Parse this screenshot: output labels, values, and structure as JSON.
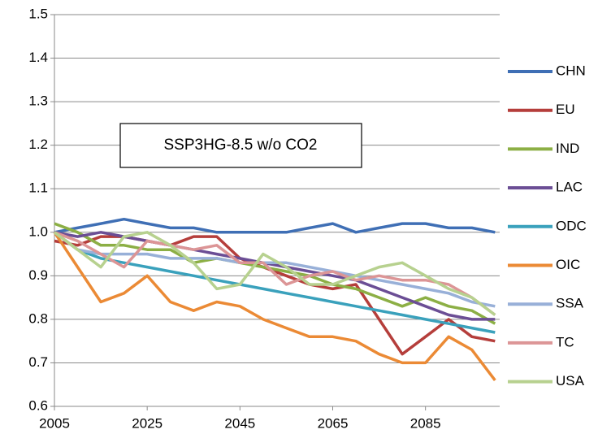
{
  "chart_data": {
    "type": "line",
    "annotation": "SSP3HG-8.5 w/o CO2",
    "x": [
      2005,
      2010,
      2015,
      2020,
      2025,
      2030,
      2035,
      2040,
      2045,
      2050,
      2055,
      2060,
      2065,
      2070,
      2075,
      2080,
      2085,
      2090,
      2095,
      2100
    ],
    "series": [
      {
        "name": "CHN",
        "color": "#3f6fb5",
        "values": [
          1.0,
          1.01,
          1.02,
          1.03,
          1.02,
          1.01,
          1.01,
          1.0,
          1.0,
          1.0,
          1.0,
          1.01,
          1.02,
          1.0,
          1.01,
          1.02,
          1.02,
          1.01,
          1.01,
          1.0
        ]
      },
      {
        "name": "EU",
        "color": "#b53e3b",
        "values": [
          0.98,
          0.97,
          0.99,
          0.99,
          0.98,
          0.97,
          0.99,
          0.99,
          0.94,
          0.92,
          0.9,
          0.88,
          0.87,
          0.88,
          0.8,
          0.72,
          0.76,
          0.8,
          0.76,
          0.75
        ]
      },
      {
        "name": "IND",
        "color": "#8caf45",
        "values": [
          1.02,
          1.0,
          0.97,
          0.97,
          0.96,
          0.96,
          0.93,
          0.94,
          0.93,
          0.92,
          0.91,
          0.9,
          0.88,
          0.87,
          0.85,
          0.83,
          0.85,
          0.83,
          0.82,
          0.79
        ]
      },
      {
        "name": "LAC",
        "color": "#6b4e95",
        "values": [
          1.0,
          0.99,
          1.0,
          0.99,
          0.98,
          0.97,
          0.96,
          0.95,
          0.94,
          0.93,
          0.92,
          0.91,
          0.9,
          0.89,
          0.87,
          0.85,
          0.83,
          0.81,
          0.8,
          0.8
        ]
      },
      {
        "name": "ODC",
        "color": "#3aa1bc",
        "values": [
          1.0,
          0.96,
          0.94,
          0.93,
          0.92,
          0.91,
          0.9,
          0.89,
          0.88,
          0.87,
          0.86,
          0.85,
          0.84,
          0.83,
          0.82,
          0.81,
          0.8,
          0.79,
          0.78,
          0.77
        ]
      },
      {
        "name": "OIC",
        "color": "#eb8a35",
        "values": [
          1.0,
          0.92,
          0.84,
          0.86,
          0.9,
          0.84,
          0.82,
          0.84,
          0.83,
          0.8,
          0.78,
          0.76,
          0.76,
          0.75,
          0.72,
          0.7,
          0.7,
          0.76,
          0.73,
          0.66
        ]
      },
      {
        "name": "SSA",
        "color": "#98b0d8",
        "values": [
          1.0,
          0.96,
          0.95,
          0.95,
          0.95,
          0.94,
          0.94,
          0.94,
          0.93,
          0.93,
          0.93,
          0.92,
          0.91,
          0.9,
          0.89,
          0.88,
          0.87,
          0.86,
          0.84,
          0.83
        ]
      },
      {
        "name": "TC",
        "color": "#dc9596",
        "values": [
          1.0,
          0.98,
          0.95,
          0.92,
          0.98,
          0.97,
          0.96,
          0.97,
          0.93,
          0.93,
          0.88,
          0.9,
          0.91,
          0.89,
          0.9,
          0.89,
          0.89,
          0.88,
          0.85,
          0.81
        ]
      },
      {
        "name": "USA",
        "color": "#b7d18f",
        "values": [
          1.0,
          0.96,
          0.92,
          0.99,
          1.0,
          0.97,
          0.93,
          0.87,
          0.88,
          0.95,
          0.92,
          0.88,
          0.88,
          0.9,
          0.92,
          0.93,
          0.9,
          0.87,
          0.85,
          0.81
        ]
      }
    ],
    "xlim": [
      2005,
      2101
    ],
    "xticks": [
      2005,
      2025,
      2045,
      2065,
      2085
    ],
    "ylim": [
      0.6,
      1.5
    ],
    "yticks": [
      0.6,
      0.7,
      0.8,
      0.9,
      {
        "value": 1,
        "label": "1.0"
      },
      1.1,
      1.2,
      1.3,
      1.4,
      1.5
    ],
    "grid": true
  }
}
